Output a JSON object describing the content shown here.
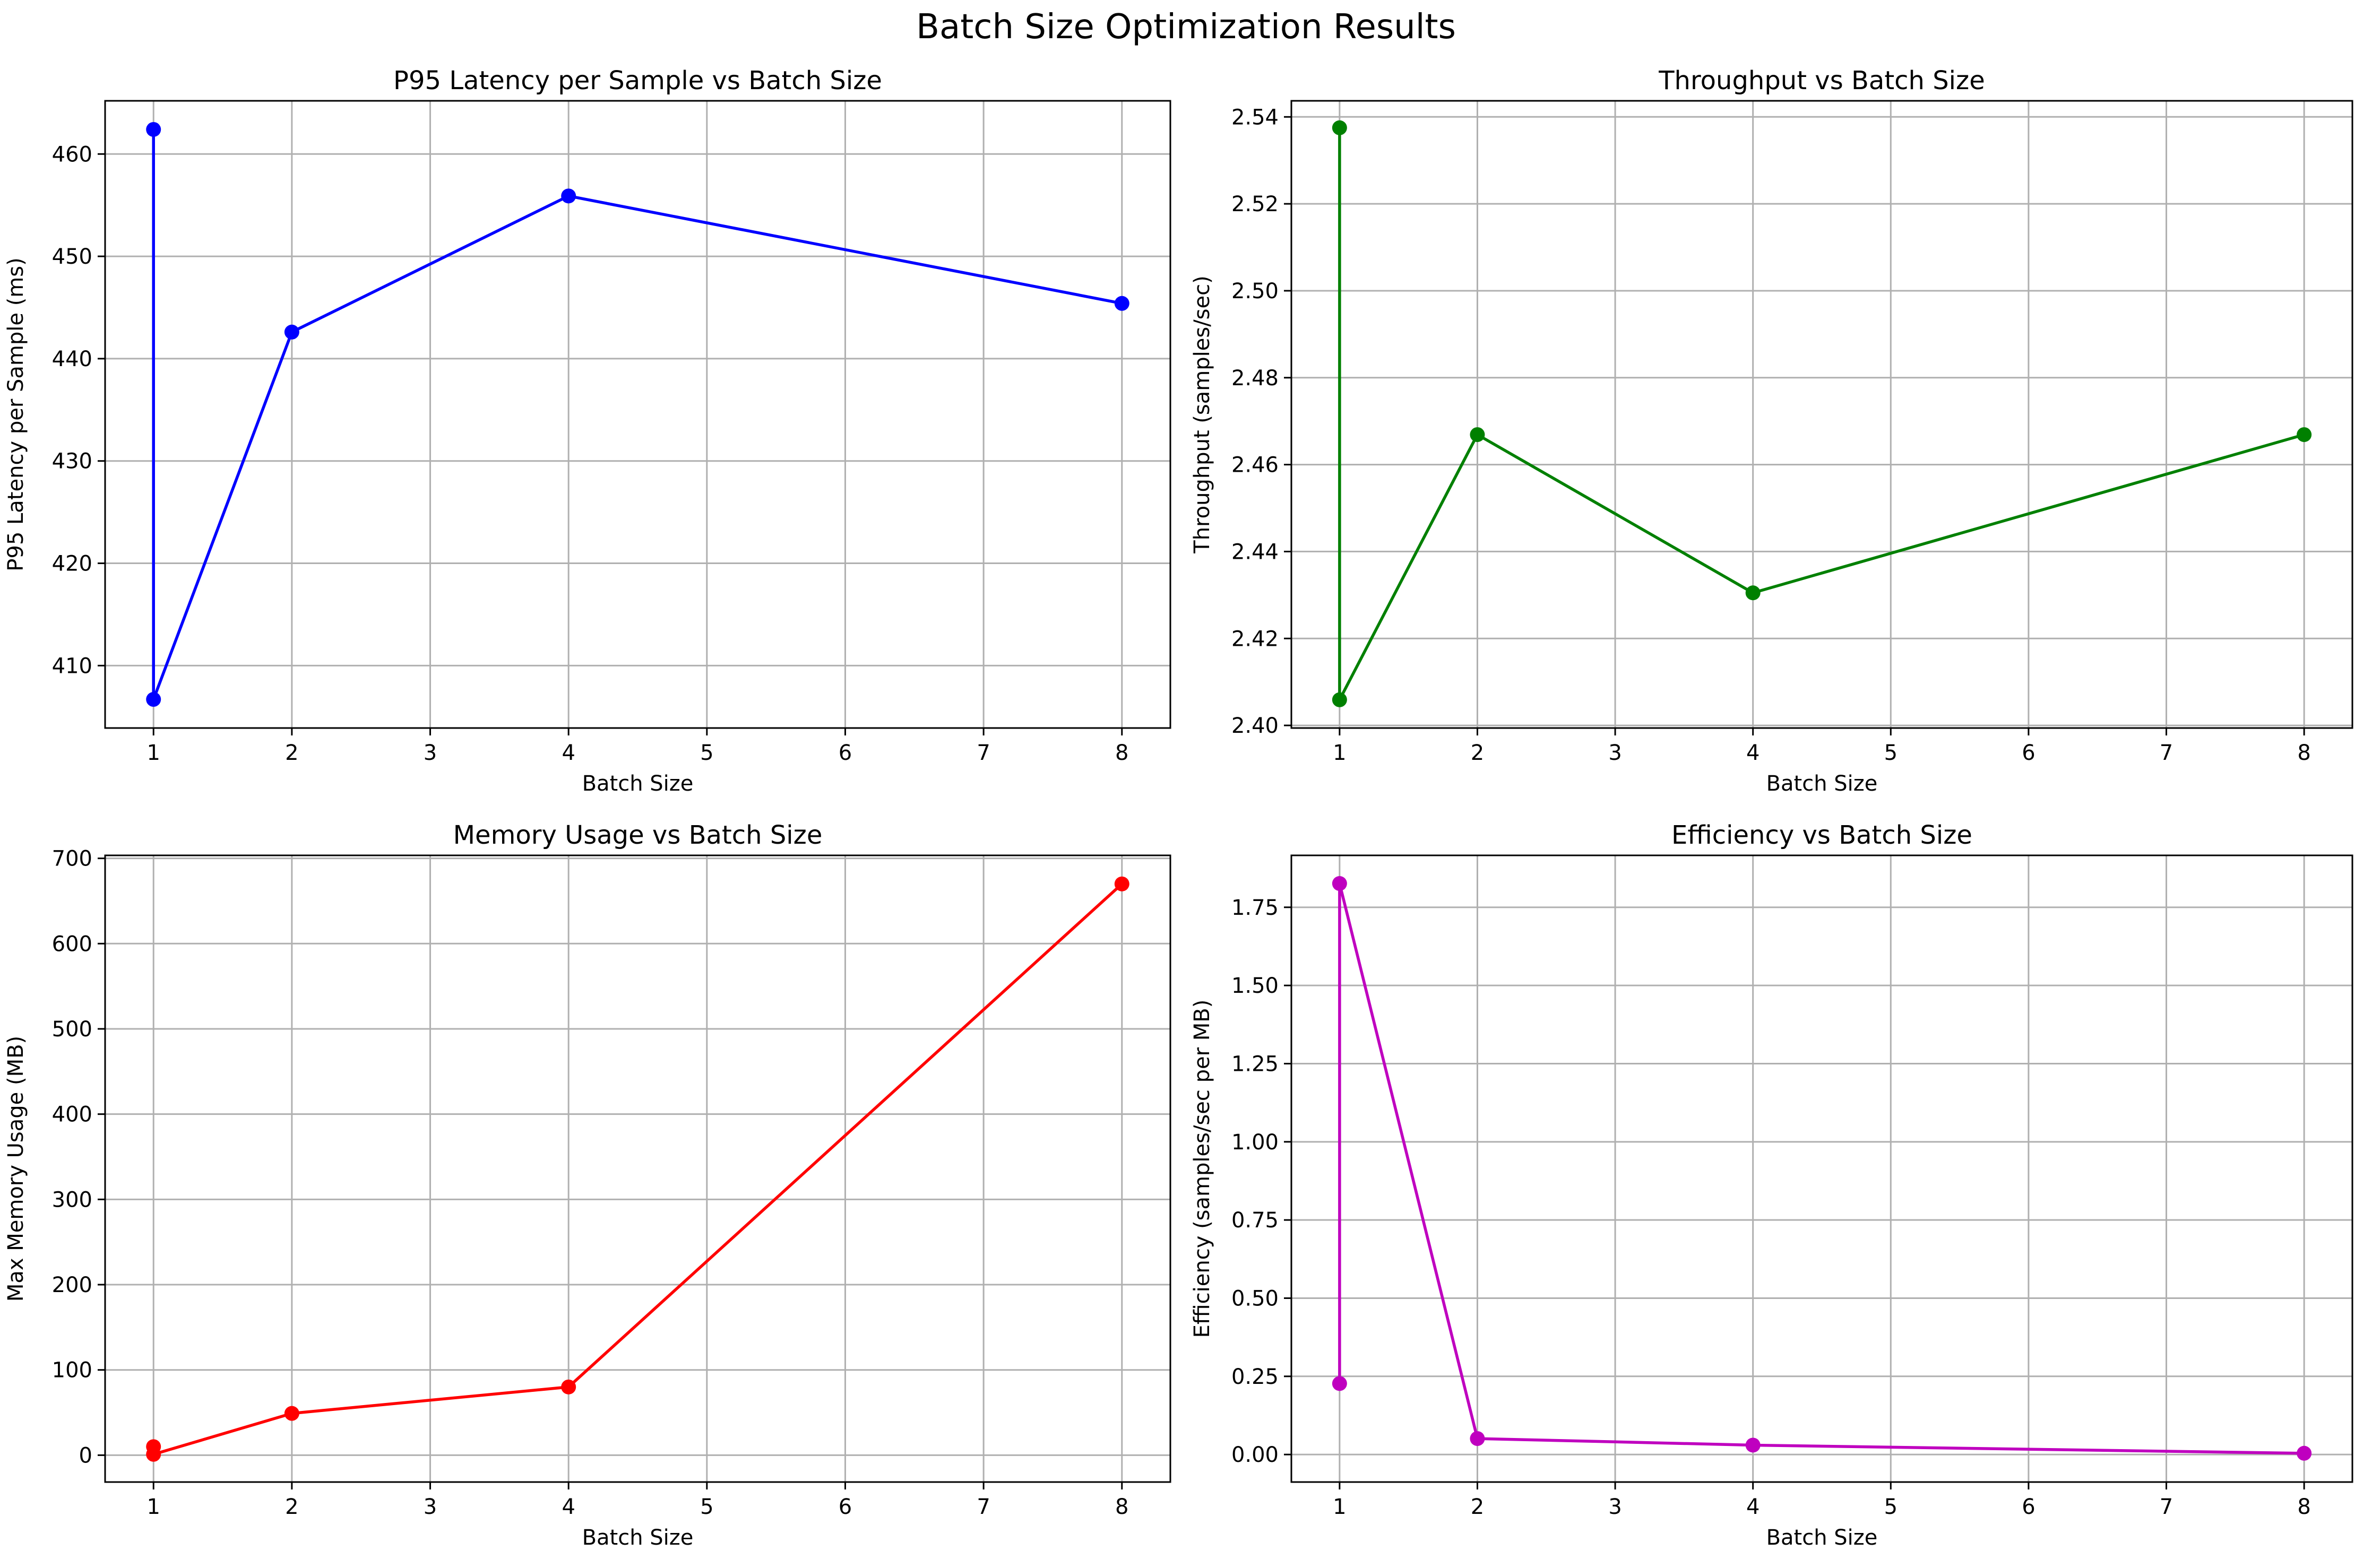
{
  "figure": {
    "title": "Batch Size Optimization Results"
  },
  "chart_data": [
    {
      "type": "line",
      "title": "P95 Latency per Sample vs Batch Size",
      "xlabel": "Batch Size",
      "ylabel": "P95 Latency per Sample (ms)",
      "xlim": [
        0.65,
        8.35
      ],
      "ylim": [
        403.9,
        465.2
      ],
      "xticks": [
        1,
        2,
        3,
        4,
        5,
        6,
        7,
        8
      ],
      "yticks": [
        410,
        420,
        430,
        440,
        450,
        460
      ],
      "grid": true,
      "color": "#0000ff",
      "x": [
        1,
        1,
        2,
        4,
        8
      ],
      "y": [
        462.4,
        406.7,
        442.6,
        455.9,
        445.4
      ]
    },
    {
      "type": "line",
      "title": "Throughput vs Batch Size",
      "xlabel": "Batch Size",
      "ylabel": "Throughput (samples/sec)",
      "xlim": [
        0.65,
        8.35
      ],
      "ylim": [
        2.3994,
        2.5437
      ],
      "xticks": [
        1,
        2,
        3,
        4,
        5,
        6,
        7,
        8
      ],
      "yticks": [
        2.4,
        2.42,
        2.44,
        2.46,
        2.48,
        2.5,
        2.52,
        2.54
      ],
      "ytick_decimals": 2,
      "grid": true,
      "color": "#008000",
      "x": [
        1,
        1,
        2,
        4,
        8
      ],
      "y": [
        2.5375,
        2.4059,
        2.4669,
        2.4305,
        2.4669
      ]
    },
    {
      "type": "line",
      "title": "Memory Usage vs Batch Size",
      "xlabel": "Batch Size",
      "ylabel": "Max Memory Usage (MB)",
      "xlim": [
        0.65,
        8.35
      ],
      "ylim": [
        -31.5,
        703.5
      ],
      "xticks": [
        1,
        2,
        3,
        4,
        5,
        6,
        7,
        8
      ],
      "yticks": [
        0,
        100,
        200,
        300,
        400,
        500,
        600,
        700
      ],
      "grid": true,
      "color": "#ff0000",
      "x": [
        1,
        1,
        2,
        4,
        8
      ],
      "y": [
        10,
        1,
        49,
        80,
        670
      ]
    },
    {
      "type": "line",
      "title": "Efficiency vs Batch Size",
      "xlabel": "Batch Size",
      "ylabel": "Efficiency (samples/sec per MB)",
      "xlim": [
        0.65,
        8.35
      ],
      "ylim": [
        -0.088,
        1.916
      ],
      "xticks": [
        1,
        2,
        3,
        4,
        5,
        6,
        7,
        8
      ],
      "yticks": [
        0.0,
        0.25,
        0.5,
        0.75,
        1.0,
        1.25,
        1.5,
        1.75
      ],
      "ytick_decimals": 2,
      "grid": true,
      "color": "#bf00bf",
      "x": [
        1,
        1,
        2,
        4,
        8
      ],
      "y": [
        0.227,
        1.826,
        0.051,
        0.03,
        0.004
      ]
    }
  ]
}
